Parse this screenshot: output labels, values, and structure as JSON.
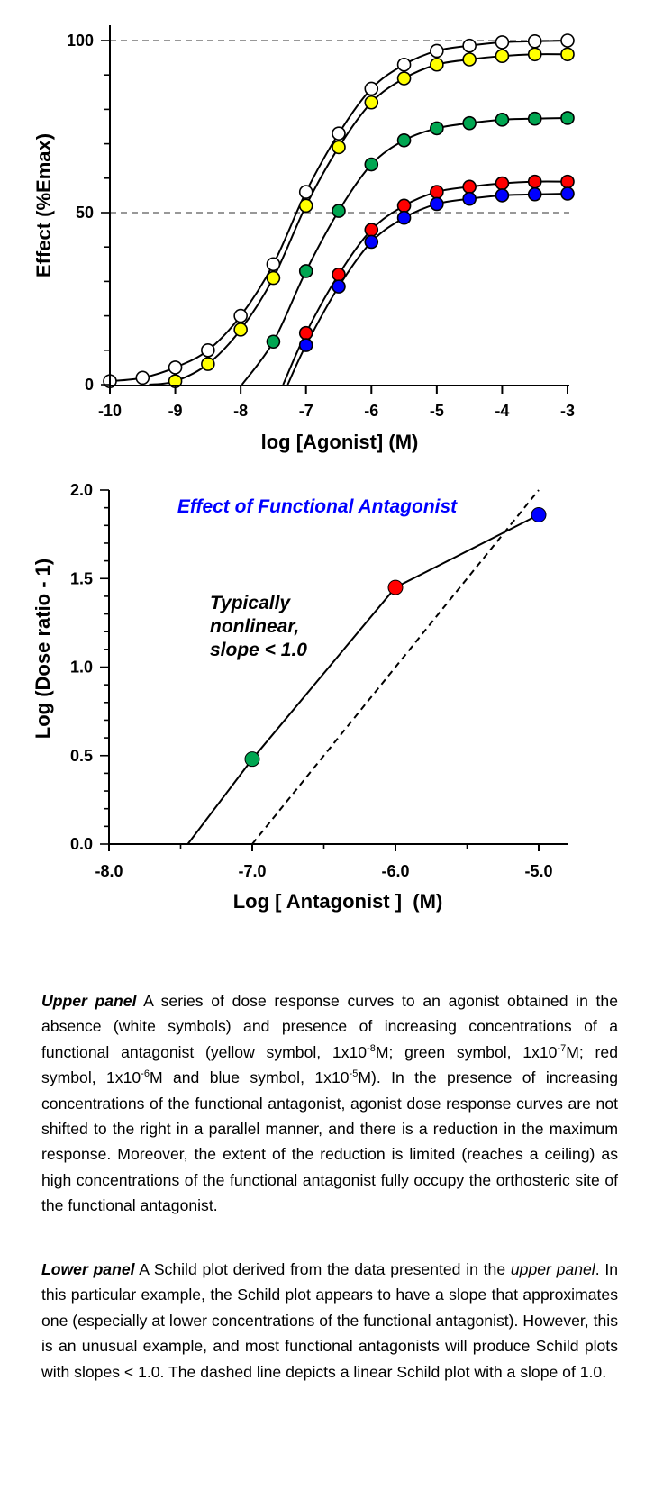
{
  "chart_data": [
    {
      "type": "line",
      "title": "",
      "xlabel": "log [Agonist] (M)",
      "ylabel": "Effect (%Emax)",
      "xlim": [
        -10,
        -3
      ],
      "ylim": [
        0,
        100
      ],
      "xticks": [
        "-10",
        "-9",
        "-8",
        "-7",
        "-6",
        "-5",
        "-4",
        "-3"
      ],
      "yticks": [
        "0",
        "50",
        "100"
      ],
      "reference_lines_y": [
        50,
        100
      ],
      "grid": false,
      "series": [
        {
          "color": "#ffffff",
          "emax": 100,
          "log_ec50": -7.2,
          "hill": 0.8,
          "x": [
            -10,
            -9.5,
            -9,
            -8.5,
            -8,
            -7.5,
            -7,
            -6.5,
            -6,
            -5.5,
            -5,
            -4.5,
            -4,
            -3.5,
            -3
          ],
          "y": [
            1,
            2,
            5,
            10,
            20,
            35,
            56,
            73,
            86,
            93,
            97,
            98.5,
            99.5,
            99.8,
            100
          ]
        },
        {
          "color": "#ffff00",
          "emax": 96,
          "log_ec50": -7.05,
          "hill": 0.88,
          "x": [
            -9,
            -8.5,
            -8,
            -7.5,
            -7,
            -6.5,
            -6,
            -5.5,
            -5,
            -4.5,
            -4,
            -3.5,
            -3
          ],
          "y": [
            1,
            6,
            16,
            31,
            52,
            69,
            82,
            89,
            93,
            94.5,
            95.5,
            96,
            96
          ]
        },
        {
          "color": "#00a651",
          "emax": 77.5,
          "log_ec50": -6.5,
          "hill": 0.8,
          "x": [
            -7.5,
            -7,
            -6.5,
            -6,
            -5.5,
            -5,
            -4.5,
            -4,
            -3.5,
            -3
          ],
          "y": [
            12.5,
            33,
            50.5,
            64,
            71,
            74.5,
            76,
            77,
            77.3,
            77.5
          ]
        },
        {
          "color": "#ff0000",
          "emax": 59,
          "log_ec50": -6.2,
          "hill": 0.8,
          "x": [
            -7,
            -6.5,
            -6,
            -5.5,
            -5,
            -4.5,
            -4,
            -3.5,
            -3
          ],
          "y": [
            15,
            32,
            45,
            52,
            56,
            57.5,
            58.5,
            59,
            59
          ]
        },
        {
          "color": "#0000ff",
          "emax": 55.5,
          "log_ec50": -6.05,
          "hill": 0.8,
          "x": [
            -7,
            -6.5,
            -6,
            -5.5,
            -5,
            -4.5,
            -4,
            -3.5,
            -3
          ],
          "y": [
            11.5,
            28.5,
            41.5,
            48.5,
            52.5,
            54,
            55,
            55.3,
            55.5
          ]
        }
      ]
    },
    {
      "type": "line",
      "title": "Effect of Functional Antagonist",
      "annotation": [
        "Typically",
        "nonlinear,",
        "slope < 1.0"
      ],
      "xlabel": "Log [ Antagonist ]  (M)",
      "ylabel": "Log (Dose ratio - 1)",
      "xlim": [
        -8.0,
        -4.8
      ],
      "ylim": [
        0.0,
        2.0
      ],
      "xticks": [
        "-8.0",
        "-7.0",
        "-6.0",
        "-5.0"
      ],
      "yticks": [
        "0.0",
        "0.5",
        "1.0",
        "1.5",
        "2.0"
      ],
      "grid": false,
      "series": [
        {
          "style": "solid",
          "x": [
            -7.45,
            -7.0,
            -6.0,
            -5.0
          ],
          "y": [
            0.0,
            0.48,
            1.45,
            1.86
          ],
          "point_colors": [
            null,
            "#00a651",
            "#ff0000",
            "#0000ff"
          ]
        },
        {
          "style": "dashed",
          "x": [
            -7.0,
            -5.0
          ],
          "y": [
            0.0,
            2.0
          ]
        }
      ]
    }
  ],
  "caption": {
    "upper": {
      "lead": "Upper panel",
      "t1": "  A series of dose response curves to an agonist obtained in the absence (white symbols) and presence of increasing concentrations of a functional antagonist (yellow symbol, 1x10",
      "s1": "-8",
      "t2": "M; green symbol, 1x10",
      "s2": "-7",
      "t3": "M; red symbol, 1x10",
      "s3": "-6",
      "t4": "M and blue symbol, 1x10",
      "s4": "-5",
      "t5": "M).  In the presence of increasing concentrations of the functional antagonist, agonist dose response curves are not shifted to the right in a parallel manner, and there is a reduction in the maximum response. Moreover, the extent of the reduction is limited (reaches a ceiling) as high concentrations of the functional antagonist fully occupy the orthosteric site of the functional antagonist."
    },
    "lower": {
      "lead": "Lower panel",
      "t1": " A Schild plot derived from the data presented in the ",
      "i1": "upper panel",
      "t2": ". In this particular example, the Schild plot appears to have a slope that approximates one (especially at lower concentrations of the functional antagonist).  However, this is an unusual example, and most functional antagonists will produce Schild plots with slopes < 1.0.  The dashed line depicts a linear Schild plot with a slope of 1.0."
    }
  }
}
